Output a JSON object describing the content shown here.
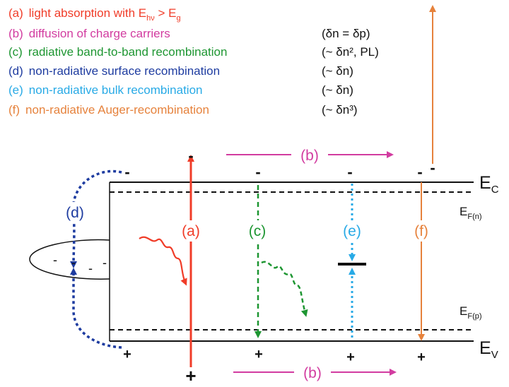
{
  "legend": [
    {
      "key": "(a)",
      "pre": "light absorption with E",
      "sub1": "hν",
      "mid": " > E",
      "sub2": "g",
      "note": "",
      "color": "#f03c28"
    },
    {
      "key": "(b)",
      "text": "diffusion of charge carriers",
      "note": "(δn = δp)",
      "color": "#d23ca0"
    },
    {
      "key": "(c)",
      "text": "radiative band-to-band recombination",
      "note": "(~ δn², PL)",
      "color": "#1e9632"
    },
    {
      "key": "(d)",
      "text": "non-radiative surface recombination",
      "note": "(~ δn)",
      "color": "#1e3ca0"
    },
    {
      "key": "(e)",
      "text": "non-radiative bulk recombination",
      "note": "(~ δn)",
      "color": "#28aae6"
    },
    {
      "key": "(f)",
      "text": "non-radiative Auger-recombination",
      "note": "(~ δn³)",
      "color": "#e6823c"
    }
  ],
  "bands": {
    "ec": {
      "main": "E",
      "sub": "C"
    },
    "ev": {
      "main": "E",
      "sub": "V"
    },
    "efn": {
      "main": "E",
      "sub": "F(n)"
    },
    "efp": {
      "main": "E",
      "sub": "F(p)"
    }
  },
  "labels": {
    "a": "(a)",
    "b_top": "(b)",
    "b_bottom": "(b)",
    "c": "(c)",
    "d": "(d)",
    "e": "(e)",
    "f": "(f)"
  },
  "charges": {
    "minus": "-",
    "plus": "+"
  }
}
